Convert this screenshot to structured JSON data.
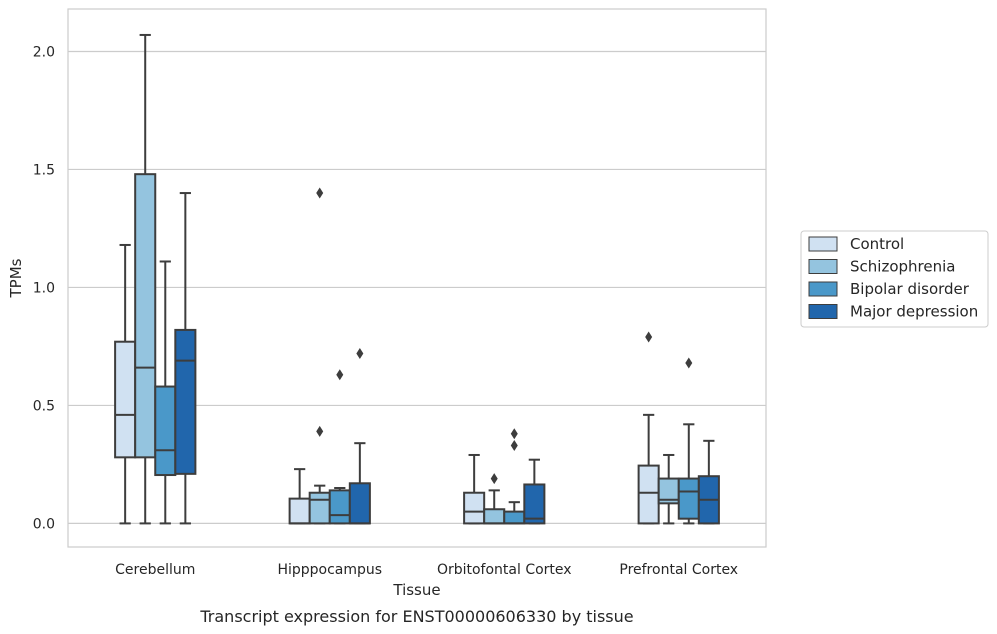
{
  "chart_data": {
    "type": "boxplot",
    "title": "Transcript expression for ENST00000606330 by tissue",
    "xlabel": "Tissue",
    "ylabel": "TPMs",
    "ylim": [
      -0.1,
      2.18
    ],
    "yticks": [
      0.0,
      0.5,
      1.0,
      1.5,
      2.0
    ],
    "ytick_labels": [
      "0.0",
      "0.5",
      "1.0",
      "1.5",
      "2.0"
    ],
    "grid": true,
    "legend_position": "right",
    "categories": [
      "Cerebellum",
      "Hipppocampus",
      "Orbitofontal Cortex",
      "Prefrontal Cortex"
    ],
    "series": [
      {
        "name": "Control",
        "color": "#d0e1f2",
        "boxes": [
          {
            "min": 0.0,
            "q1": 0.28,
            "median": 0.46,
            "q3": 0.77,
            "max": 1.18,
            "outliers": []
          },
          {
            "min": 0.0,
            "q1": 0.0,
            "median": 0.0,
            "q3": 0.105,
            "max": 0.23,
            "outliers": []
          },
          {
            "min": 0.0,
            "q1": 0.0,
            "median": 0.05,
            "q3": 0.13,
            "max": 0.29,
            "outliers": []
          },
          {
            "min": 0.0,
            "q1": 0.0,
            "median": 0.13,
            "q3": 0.245,
            "max": 0.46,
            "outliers": [
              0.79
            ]
          }
        ]
      },
      {
        "name": "Schizophrenia",
        "color": "#94c4df",
        "boxes": [
          {
            "min": 0.0,
            "q1": 0.28,
            "median": 0.66,
            "q3": 1.48,
            "max": 2.07,
            "outliers": []
          },
          {
            "min": 0.0,
            "q1": 0.0,
            "median": 0.1,
            "q3": 0.13,
            "max": 0.16,
            "outliers": [
              0.39,
              1.4
            ]
          },
          {
            "min": 0.0,
            "q1": 0.0,
            "median": 0.0,
            "q3": 0.06,
            "max": 0.14,
            "outliers": [
              0.19
            ]
          },
          {
            "min": 0.0,
            "q1": 0.085,
            "median": 0.1,
            "q3": 0.19,
            "max": 0.29,
            "outliers": []
          }
        ]
      },
      {
        "name": "Bipolar disorder",
        "color": "#4a98c9",
        "boxes": [
          {
            "min": 0.0,
            "q1": 0.205,
            "median": 0.31,
            "q3": 0.58,
            "max": 1.11,
            "outliers": []
          },
          {
            "min": 0.0,
            "q1": 0.0,
            "median": 0.035,
            "q3": 0.14,
            "max": 0.15,
            "outliers": [
              0.63
            ]
          },
          {
            "min": 0.0,
            "q1": 0.0,
            "median": 0.0,
            "q3": 0.05,
            "max": 0.09,
            "outliers": [
              0.33,
              0.38
            ]
          },
          {
            "min": 0.0,
            "q1": 0.02,
            "median": 0.135,
            "q3": 0.19,
            "max": 0.42,
            "outliers": [
              0.68
            ]
          }
        ]
      },
      {
        "name": "Major depression",
        "color": "#2166ac",
        "boxes": [
          {
            "min": 0.0,
            "q1": 0.21,
            "median": 0.69,
            "q3": 0.82,
            "max": 1.4,
            "outliers": []
          },
          {
            "min": 0.0,
            "q1": 0.0,
            "median": 0.0,
            "q3": 0.17,
            "max": 0.34,
            "outliers": [
              0.72
            ]
          },
          {
            "min": 0.0,
            "q1": 0.0,
            "median": 0.02,
            "q3": 0.165,
            "max": 0.27,
            "outliers": []
          },
          {
            "min": 0.0,
            "q1": 0.0,
            "median": 0.1,
            "q3": 0.2,
            "max": 0.35,
            "outliers": []
          }
        ]
      }
    ]
  }
}
